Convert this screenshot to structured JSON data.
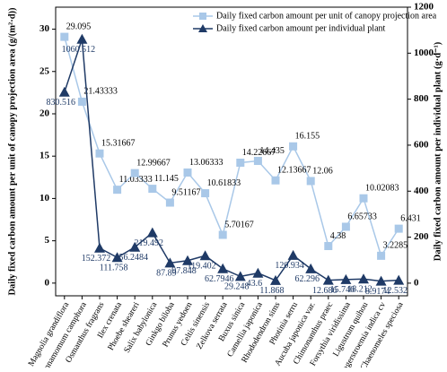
{
  "chart_data": {
    "type": "line",
    "ylabel": "Daily fixed carbon amount per unit of canopy projection area (g/(m²·d))",
    "y2label": "Daily fixed carbon amount per individual plant (g·d⁻¹)",
    "categories": [
      "Magnolia grandiflora",
      "Cinnamomum camphora",
      "Osmanthus fragrans",
      "Ilex crenata",
      "Phoebe sheareri",
      "Salix babylonica",
      "Ginkgo biloba",
      "Prunus yedoen",
      "Celtis sinensis",
      "Zelkova serrata",
      "Buxus sinica",
      "Camellia japonica",
      "Rhododendron sims",
      "Photinia serru",
      "Aucuba japonica var.",
      "Chimonanthus praec",
      "Forsythia viridissima",
      "Ligustrum quihou",
      "Lagerstroemia indica cv",
      "Chaenomeles speciosa"
    ],
    "series": [
      {
        "name": "Daily fixed carbon amount per unit of canopy projection area",
        "color": "#a9c8e8",
        "marker": "square",
        "values": [
          29.095,
          21.43333,
          15.31667,
          11.03333,
          12.99667,
          11.145,
          9.51167,
          13.06333,
          10.61833,
          5.70167,
          14.22667,
          14.435,
          12.13667,
          16.155,
          12.06,
          4.38,
          6.65733,
          10.02083,
          3.2285,
          6.431
        ]
      },
      {
        "name": "Daily fixed carbon amount per individual plant",
        "color": "#1f3a66",
        "marker": "triangle",
        "axis": "y2",
        "values": [
          830.516,
          1060.512,
          152.372,
          111.758,
          156.2484,
          219.492,
          87.89,
          97.848,
          119.402,
          62.7946,
          29.248,
          43.6,
          11.868,
          120.934,
          62.296,
          12.686,
          15.746,
          18.212,
          8.9174,
          12.532
        ]
      }
    ],
    "ylim": [
      -1.5,
      32.6
    ],
    "yticks": [
      0,
      5,
      10,
      15,
      20,
      25,
      30
    ],
    "y2lim": [
      -55,
      1200
    ],
    "y2ticks": [
      0,
      200,
      400,
      600,
      800,
      1000,
      1200
    ],
    "legend": "top-right"
  }
}
